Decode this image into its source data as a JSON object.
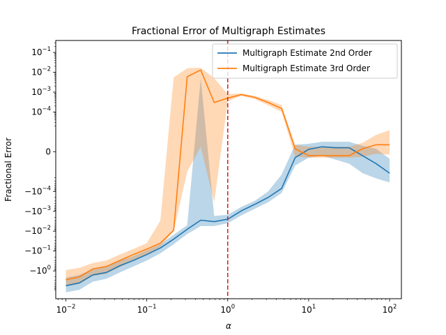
{
  "chart_data": {
    "type": "line",
    "title": "Fractional Error of Multigraph Estimates",
    "xlabel": "α",
    "ylabel": "Fractional Error",
    "x_scale": "log",
    "y_scale": "symlog",
    "xlim": [
      0.0075,
      140
    ],
    "x_ticks": [
      {
        "value": 0.01,
        "label": "10",
        "exp": "−2"
      },
      {
        "value": 0.1,
        "label": "10",
        "exp": "−1"
      },
      {
        "value": 1,
        "label": "10",
        "exp": "0"
      },
      {
        "value": 10,
        "label": "10",
        "exp": "1"
      },
      {
        "value": 100,
        "label": "10",
        "exp": "2"
      }
    ],
    "y_ticks": [
      {
        "value": 0.1,
        "label": "10",
        "exp": "−1"
      },
      {
        "value": 0.01,
        "label": "10",
        "exp": "−2"
      },
      {
        "value": 0.001,
        "label": "10",
        "exp": "−3"
      },
      {
        "value": 0.0001,
        "label": "10",
        "exp": "−4"
      },
      {
        "value": 0,
        "label": "0",
        "exp": ""
      },
      {
        "value": -0.0001,
        "label": "−10",
        "exp": "−4"
      },
      {
        "value": -0.001,
        "label": "−10",
        "exp": "−3"
      },
      {
        "value": -0.01,
        "label": "−10",
        "exp": "−2"
      },
      {
        "value": -0.1,
        "label": "−10",
        "exp": "−1"
      },
      {
        "value": -1,
        "label": "−10",
        "exp": "0"
      }
    ],
    "vline": {
      "x": 1,
      "color": "#d62728",
      "style": "dashed"
    },
    "legend": {
      "position": "top-right"
    },
    "x": [
      0.01,
      0.0147,
      0.0215,
      0.0316,
      0.0464,
      0.0681,
      0.1,
      0.147,
      0.215,
      0.316,
      0.464,
      0.681,
      1.0,
      1.47,
      2.15,
      3.16,
      4.64,
      6.81,
      10,
      14.7,
      21.5,
      31.6,
      46.4,
      68.1,
      100
    ],
    "series": [
      {
        "name": "Multigraph Estimate 2nd Order",
        "color": "#1f77b4",
        "values": [
          -5.6,
          -4.0,
          -1.6,
          -1.2,
          -0.55,
          -0.3,
          -0.15,
          -0.07,
          -0.025,
          -0.008,
          -0.0028,
          -0.0033,
          -0.0025,
          -0.00095,
          -0.00045,
          -0.0002,
          -7e-05,
          -3e-06,
          1.2e-06,
          2.5e-06,
          2e-06,
          2e-06,
          -2e-06,
          -6e-06,
          -1.2e-05
        ],
        "upper": [
          -2.2,
          -1.6,
          -0.8,
          -0.6,
          -0.3,
          -0.18,
          -0.09,
          -0.045,
          -0.015,
          -0.005,
          0.005,
          -0.0017,
          -0.0015,
          -0.0006,
          -0.0003,
          -0.0001,
          -1.4e-05,
          3.5e-06,
          4e-06,
          5e-06,
          5e-06,
          5e-06,
          3e-06,
          1.5e-06,
          -3.5e-06
        ],
        "lower": [
          -12,
          -9,
          -3.5,
          -2.5,
          -1.2,
          -0.6,
          -0.3,
          -0.13,
          -0.045,
          -0.014,
          -0.0055,
          -0.0055,
          -0.004,
          -0.0016,
          -0.00075,
          -0.00035,
          -0.00012,
          -7e-06,
          -3e-06,
          -2e-06,
          -4e-06,
          -6e-06,
          -1.2e-05,
          -2.2e-05,
          -3.5e-05
        ]
      },
      {
        "name": "Multigraph Estimate 3rd Order",
        "color": "#ff7f0e",
        "values": [
          -2.8,
          -2.0,
          -0.8,
          -0.6,
          -0.3,
          -0.15,
          -0.08,
          -0.04,
          -0.009,
          0.006,
          0.013,
          0.0003,
          0.0005,
          0.00075,
          0.00055,
          0.0003,
          0.00015,
          1.5e-06,
          -2e-06,
          -2e-06,
          -2e-06,
          -2e-06,
          1.5e-06,
          3.5e-06,
          3.5e-06
        ],
        "upper": [
          -0.9,
          -0.7,
          -0.4,
          -0.3,
          -0.15,
          -0.08,
          -0.04,
          -0.003,
          0.0055,
          0.016,
          0.017,
          0.005,
          0.0008,
          0.00085,
          0.00065,
          0.0004,
          0.00022,
          3.5e-06,
          2.5e-06,
          2.5e-06,
          2.5e-06,
          2.5e-06,
          4.5e-06,
          8.5e-06,
          1.2e-05
        ],
        "lower": [
          -6,
          -4.5,
          -1.8,
          -1.4,
          -0.65,
          -0.3,
          -0.15,
          -0.06,
          -0.01,
          -1e-05,
          2.5e-06,
          -0.00035,
          0.00035,
          0.00065,
          0.00045,
          0.00022,
          0.0001,
          -2.5e-06,
          -3e-06,
          -3e-06,
          -3e-06,
          -3e-06,
          -2.5e-06,
          -1e-06,
          -1.5e-06
        ]
      }
    ]
  }
}
